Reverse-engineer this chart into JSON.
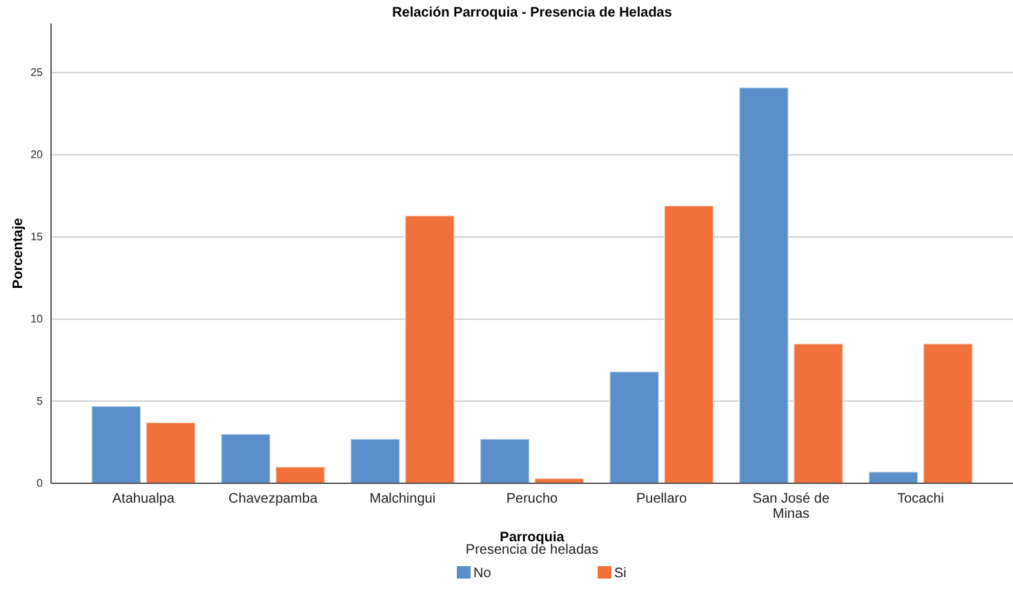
{
  "chart_data": {
    "type": "bar",
    "title": "Relación Parroquia - Presencia de Heladas",
    "xlabel": "Parroquia",
    "ylabel": "Porcentaje",
    "legend_title": "Presencia de heladas",
    "categories": [
      "Atahualpa",
      "Chavezpamba",
      "Malchingui",
      "Perucho",
      "Puellaro",
      "San José de Minas",
      "Tocachi"
    ],
    "series": [
      {
        "name": "No",
        "color": "#5b8fcb",
        "values": [
          4.7,
          3.0,
          2.7,
          2.7,
          6.8,
          24.1,
          0.7
        ]
      },
      {
        "name": "Si",
        "color": "#f2703a",
        "values": [
          3.7,
          1.0,
          16.3,
          0.3,
          16.9,
          8.5,
          8.5
        ]
      }
    ],
    "ylim": [
      0,
      28
    ],
    "yticks": [
      0,
      5,
      10,
      15,
      20,
      25
    ],
    "grid": "y",
    "legend": "bottom"
  }
}
